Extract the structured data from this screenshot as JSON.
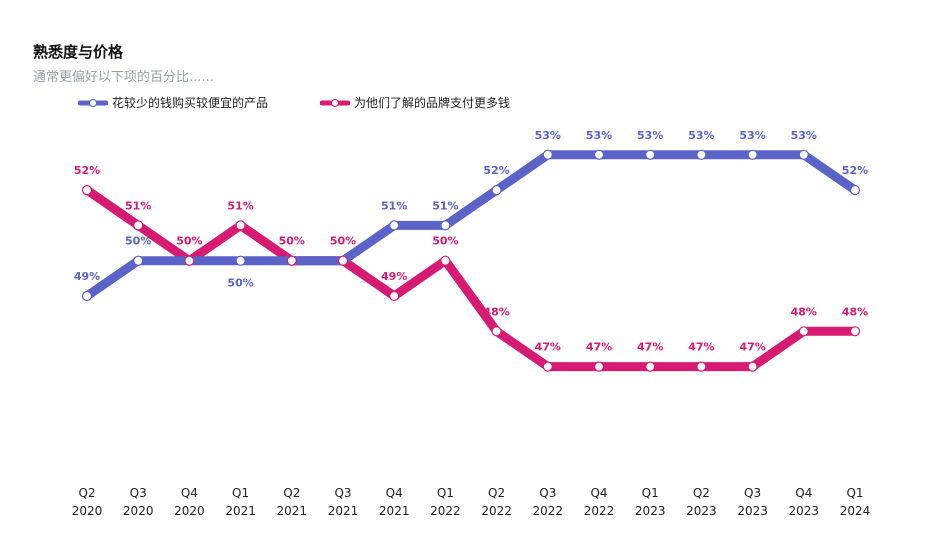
{
  "chart_data": {
    "type": "line",
    "title": "熟悉度与价格",
    "subtitle": "通常更偏好以下项的百分比......",
    "categories": [
      [
        "Q2",
        "2020"
      ],
      [
        "Q3",
        "2020"
      ],
      [
        "Q4",
        "2020"
      ],
      [
        "Q1",
        "2021"
      ],
      [
        "Q2",
        "2021"
      ],
      [
        "Q3",
        "2021"
      ],
      [
        "Q4",
        "2021"
      ],
      [
        "Q1",
        "2022"
      ],
      [
        "Q2",
        "2022"
      ],
      [
        "Q3",
        "2022"
      ],
      [
        "Q4",
        "2022"
      ],
      [
        "Q1",
        "2023"
      ],
      [
        "Q2",
        "2023"
      ],
      [
        "Q3",
        "2023"
      ],
      [
        "Q4",
        "2023"
      ],
      [
        "Q1",
        "2024"
      ]
    ],
    "series": [
      {
        "name": "花较少的钱购买较便宜的产品",
        "color": "#5b63c9",
        "label_color": "#5b63c9",
        "values": [
          49,
          50,
          50,
          50,
          50,
          50,
          51,
          51,
          52,
          53,
          53,
          53,
          53,
          53,
          53,
          52
        ]
      },
      {
        "name": "为他们了解的品牌支付更多钱",
        "color": "#d81b72",
        "label_color": "#d81b72",
        "values": [
          52,
          51,
          50,
          51,
          50,
          50,
          49,
          50,
          48,
          47,
          47,
          47,
          47,
          47,
          48,
          48
        ]
      }
    ],
    "value_suffix": "%",
    "legend": "top-left",
    "grid": false
  }
}
